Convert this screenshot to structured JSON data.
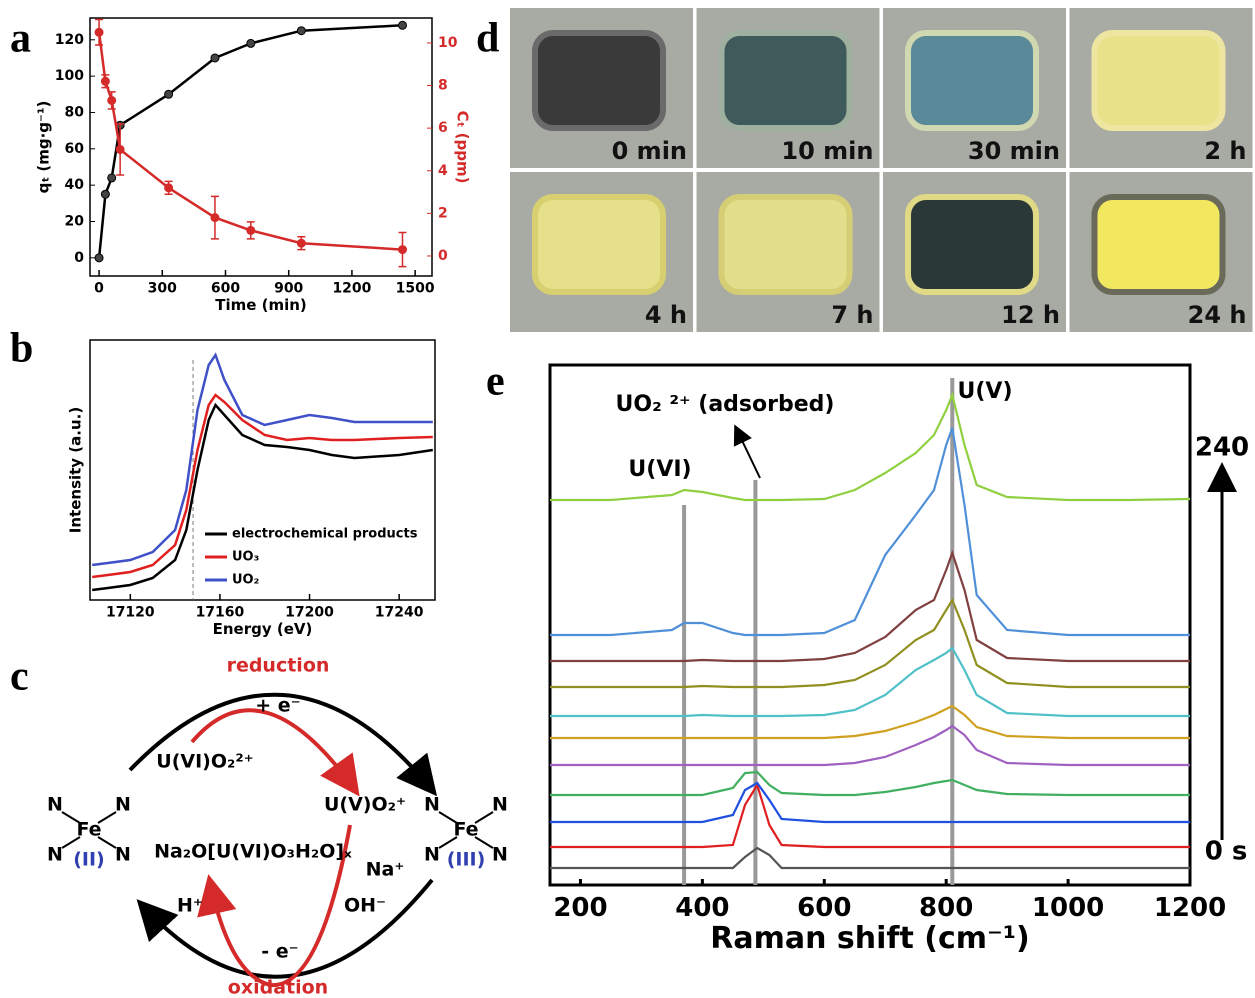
{
  "panel_labels": [
    "a",
    "b",
    "c",
    "d",
    "e"
  ],
  "chart_data": [
    {
      "type": "line",
      "xlabel": "Time (min)",
      "ylabel": "qₜ (mg·g⁻¹)",
      "y2label": "Cₜ (ppm)",
      "x": [
        0,
        30,
        60,
        100,
        330,
        550,
        720,
        960,
        1440
      ],
      "series": [
        {
          "color": "#000000",
          "values": [
            0,
            35,
            44,
            73,
            90,
            110,
            118,
            125,
            128
          ],
          "markers": true
        },
        {
          "color": "#d42a2a",
          "axis": "y2",
          "values": [
            10.5,
            8.2,
            7.3,
            5.0,
            3.2,
            1.8,
            1.2,
            0.6,
            0.3
          ],
          "errors": [
            0.6,
            0.3,
            0.4,
            1.2,
            0.3,
            1.0,
            0.4,
            0.3,
            0.8
          ],
          "markers": true
        }
      ],
      "xlim": [
        -43,
        1580
      ],
      "xticks": [
        0,
        300,
        600,
        900,
        1200,
        1500
      ],
      "ylim": [
        -10,
        132
      ],
      "yticks": [
        0,
        20,
        40,
        60,
        80,
        100,
        120
      ],
      "y2lim": [
        -0.94,
        11.17
      ],
      "y2ticks": [
        0,
        2,
        4,
        6,
        8,
        10
      ]
    },
    {
      "type": "line",
      "xlabel": "Energy (eV)",
      "ylabel": "Intensity (a.u.)",
      "x": [
        17103,
        17110,
        17120,
        17130,
        17140,
        17145,
        17150,
        17155,
        17158,
        17162,
        17170,
        17180,
        17190,
        17200,
        17210,
        17220,
        17240,
        17255
      ],
      "series": [
        {
          "name": "electrochemical products",
          "color": "#000000",
          "values": [
            0.1,
            0.12,
            0.15,
            0.22,
            0.4,
            0.7,
            1.3,
            1.8,
            1.95,
            1.85,
            1.65,
            1.55,
            1.53,
            1.5,
            1.45,
            1.42,
            1.45,
            1.5
          ]
        },
        {
          "name": "UO₃",
          "color": "#e02020",
          "values": [
            0.23,
            0.25,
            0.28,
            0.35,
            0.55,
            0.9,
            1.5,
            1.95,
            2.05,
            1.98,
            1.8,
            1.65,
            1.6,
            1.62,
            1.6,
            1.6,
            1.62,
            1.63
          ]
        },
        {
          "name": "UO₂",
          "color": "#4050c8",
          "values": [
            0.35,
            0.37,
            0.4,
            0.48,
            0.7,
            1.1,
            1.9,
            2.35,
            2.45,
            2.2,
            1.85,
            1.75,
            1.8,
            1.85,
            1.82,
            1.78,
            1.78,
            1.78
          ]
        }
      ],
      "xlim": [
        17102,
        17256
      ],
      "xticks": [
        17120,
        17160,
        17200,
        17240
      ],
      "ylim": [
        0,
        2.6
      ],
      "reference_line": 17148,
      "legend": "lower right"
    },
    {
      "type": "line",
      "xlabel": "Raman shift (cm⁻¹)",
      "x": [
        150,
        250,
        350,
        370,
        400,
        450,
        470,
        490,
        510,
        530,
        600,
        650,
        700,
        750,
        780,
        800,
        810,
        830,
        850,
        900,
        1000,
        1100,
        1200
      ],
      "series": [
        {
          "color": "#555555",
          "values": [
            17,
            17,
            17,
            17,
            17,
            17,
            28,
            37,
            30,
            17,
            17,
            17,
            17,
            17,
            17,
            17,
            17,
            17,
            17,
            17,
            17,
            17,
            17
          ]
        },
        {
          "color": "#e02020",
          "values": [
            38,
            38,
            38,
            38,
            38,
            40,
            80,
            100,
            60,
            40,
            38,
            38,
            38,
            38,
            38,
            38,
            38,
            38,
            38,
            38,
            38,
            38,
            38
          ]
        },
        {
          "color": "#2050e0",
          "values": [
            63,
            63,
            63,
            63,
            63,
            70,
            95,
            102,
            85,
            66,
            63,
            63,
            63,
            63,
            63,
            63,
            63,
            63,
            63,
            63,
            63,
            63,
            63
          ]
        },
        {
          "color": "#40b060",
          "values": [
            90,
            90,
            90,
            90,
            90,
            97,
            112,
            113,
            100,
            92,
            90,
            90,
            93,
            98,
            102,
            104,
            105,
            100,
            95,
            91,
            90,
            90,
            90
          ]
        },
        {
          "color": "#a060c0",
          "values": [
            120,
            120,
            120,
            120,
            120,
            120,
            120,
            120,
            120,
            120,
            120,
            122,
            128,
            140,
            148,
            155,
            159,
            150,
            135,
            122,
            120,
            120,
            120
          ]
        },
        {
          "color": "#d0a020",
          "values": [
            147,
            147,
            147,
            147,
            147,
            147,
            147,
            147,
            147,
            147,
            147,
            149,
            154,
            163,
            170,
            176,
            179,
            170,
            158,
            149,
            147,
            147,
            147
          ]
        },
        {
          "color": "#50c0c8",
          "values": [
            169,
            169,
            169,
            169,
            170,
            169,
            169,
            169,
            169,
            169,
            170,
            175,
            190,
            215,
            225,
            232,
            237,
            215,
            190,
            172,
            169,
            169,
            169
          ]
        },
        {
          "color": "#909020",
          "values": [
            198,
            198,
            198,
            198,
            199,
            198,
            198,
            198,
            198,
            198,
            200,
            205,
            220,
            245,
            255,
            275,
            285,
            255,
            220,
            202,
            198,
            198,
            198
          ]
        },
        {
          "color": "#804040",
          "values": [
            224,
            224,
            224,
            224,
            225,
            224,
            224,
            224,
            224,
            224,
            226,
            232,
            248,
            275,
            285,
            315,
            332,
            295,
            245,
            227,
            224,
            224,
            224
          ]
        },
        {
          "color": "#5090d8",
          "values": [
            250,
            250,
            255,
            262,
            262,
            252,
            250,
            250,
            250,
            250,
            252,
            265,
            330,
            370,
            395,
            440,
            457,
            380,
            290,
            255,
            250,
            250,
            250
          ]
        },
        {
          "color": "#90d040",
          "values": [
            385,
            385,
            390,
            395,
            393,
            387,
            385,
            385,
            385,
            385,
            386,
            395,
            412,
            432,
            450,
            475,
            490,
            440,
            400,
            388,
            385,
            385,
            386
          ]
        }
      ],
      "xlim": [
        150,
        1200
      ],
      "xticks": [
        200,
        400,
        600,
        800,
        1000,
        1200
      ],
      "ylim": [
        0,
        520
      ],
      "annotations": [
        {
          "x": 370,
          "label": "U(VI)"
        },
        {
          "x": 487,
          "label": "UO₂ ²⁺ (adsorbed)"
        },
        {
          "x": 810,
          "label": "U(V)"
        }
      ],
      "time_labels": {
        "end": "240",
        "start": "0 s"
      }
    }
  ],
  "photos": {
    "labels": [
      "0 min",
      "10 min",
      "30 min",
      "2 h",
      "4 h",
      "7 h",
      "12 h",
      "24 h"
    ]
  },
  "diagram": {
    "reduction": "reduction",
    "plus_e": "+ e⁻",
    "u6": "U(VI)O₂²⁺",
    "u5": "U(V)O₂⁺",
    "product": "Na₂O[U(VI)O₃H₂O]ₓ",
    "na": "Na⁺",
    "oh": "OH⁻",
    "h": "H⁺",
    "minus_e": "- e⁻",
    "oxidation": "oxidation",
    "n": "N",
    "fe": "Fe",
    "fe2": "(II)",
    "fe3": "(III)"
  }
}
